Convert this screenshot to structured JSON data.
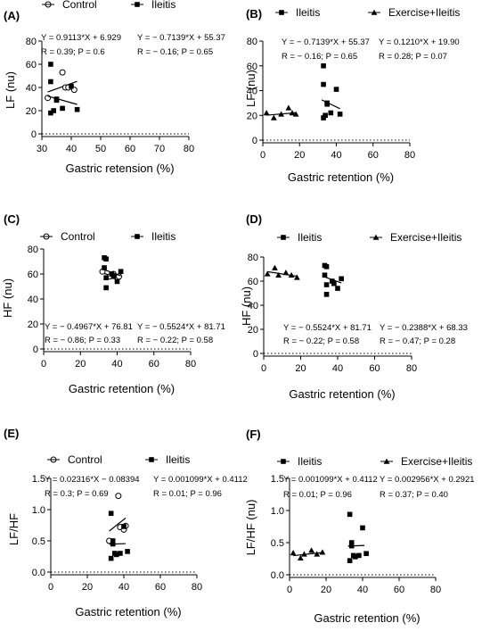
{
  "chart_data": [
    {
      "panel": "(A)",
      "type": "scatter",
      "xlabel": "Gastric retension (%)",
      "ylabel": "LF (nu)",
      "xlim": [
        30,
        80
      ],
      "ylim": [
        0,
        80
      ],
      "xticks": [
        "30",
        "40",
        "50",
        "60",
        "70",
        "80"
      ],
      "yticks": [
        "0",
        "20",
        "40",
        "60",
        "80"
      ],
      "series": [
        {
          "name": "Control",
          "marker": "open-circle",
          "equation": "Y = 0.9113*X + 6.929",
          "stats": "R = 0.39; P = 0.6",
          "line": {
            "slope": 0.9113,
            "intercept": 6.929,
            "x": [
              32,
              42
            ]
          },
          "points": [
            [
              32,
              31
            ],
            [
              37,
              53
            ],
            [
              38,
              40
            ],
            [
              39,
              40
            ],
            [
              41,
              38
            ]
          ]
        },
        {
          "name": "Ileitis",
          "marker": "filled-square",
          "equation": "Y = − 0.7139*X + 55.37",
          "stats": "R = − 0.16; P = 0.65",
          "line": {
            "slope": -0.7139,
            "intercept": 55.37,
            "x": [
              32,
              42
            ]
          },
          "points": [
            [
              33,
              60
            ],
            [
              33,
              45
            ],
            [
              33,
              18
            ],
            [
              34,
              20
            ],
            [
              35,
              29
            ],
            [
              35,
              30
            ],
            [
              37,
              22
            ],
            [
              40,
              41
            ],
            [
              42,
              21
            ]
          ]
        }
      ]
    },
    {
      "panel": "(B)",
      "type": "scatter",
      "xlabel": "Gastric retention (%)",
      "ylabel": "LF (nu)",
      "xlim": [
        0,
        80
      ],
      "ylim": [
        0,
        80
      ],
      "xticks": [
        "0",
        "20",
        "40",
        "60",
        "80"
      ],
      "yticks": [
        "0",
        "20",
        "40",
        "60",
        "80"
      ],
      "series": [
        {
          "name": "Ileitis",
          "marker": "filled-square",
          "equation": "Y = − 0.7139*X + 55.37",
          "stats": "R = − 0.16; P = 0.65",
          "line": {
            "slope": -0.7139,
            "intercept": 55.37,
            "x": [
              32,
              42
            ]
          },
          "points": [
            [
              33,
              60
            ],
            [
              33,
              45
            ],
            [
              33,
              18
            ],
            [
              34,
              20
            ],
            [
              35,
              29
            ],
            [
              35,
              30
            ],
            [
              37,
              22
            ],
            [
              40,
              41
            ],
            [
              42,
              21
            ]
          ]
        },
        {
          "name": "Exercise+Ileitis",
          "marker": "filled-triangle",
          "equation": "Y = 0.1210*X + 19.90",
          "stats": "R = 0.28; P = 0.07",
          "line": {
            "slope": 0.121,
            "intercept": 19.9,
            "x": [
              2,
              18
            ]
          },
          "points": [
            [
              2,
              22
            ],
            [
              6,
              18
            ],
            [
              10,
              21
            ],
            [
              14,
              26
            ],
            [
              16,
              22
            ],
            [
              18,
              21
            ]
          ]
        }
      ]
    },
    {
      "panel": "(C)",
      "type": "scatter",
      "xlabel": "Gastric retention (%)",
      "ylabel": "HF (nu)",
      "xlim": [
        0,
        80
      ],
      "ylim": [
        0,
        80
      ],
      "xticks": [
        "0",
        "20",
        "40",
        "60",
        "80"
      ],
      "yticks": [
        "0",
        "20",
        "40",
        "60",
        "80"
      ],
      "series": [
        {
          "name": "Control",
          "marker": "open-circle",
          "equation": "Y = − 0.4967*X + 76.81",
          "stats": "R = − 0.86; P = 0.33",
          "line": {
            "slope": -0.4967,
            "intercept": 76.81,
            "x": [
              32,
              42
            ]
          },
          "points": [
            [
              32,
              62
            ],
            [
              36,
              58
            ],
            [
              38,
              60
            ],
            [
              40,
              57
            ],
            [
              41,
              58
            ]
          ]
        },
        {
          "name": "Ileitis",
          "marker": "filled-square",
          "equation": "Y = − 0.5524*X + 81.71",
          "stats": "R = − 0.22; P = 0.58",
          "line": {
            "slope": -0.5524,
            "intercept": 81.71,
            "x": [
              32,
              42
            ]
          },
          "points": [
            [
              33,
              73
            ],
            [
              34,
              72
            ],
            [
              33,
              65
            ],
            [
              34,
              57
            ],
            [
              34,
              49
            ],
            [
              37,
              60
            ],
            [
              38,
              58
            ],
            [
              40,
              54
            ],
            [
              42,
              62
            ]
          ]
        }
      ]
    },
    {
      "panel": "(D)",
      "type": "scatter",
      "xlabel": "Gastric retention (%)",
      "ylabel": "HF (nu)",
      "xlim": [
        0,
        80
      ],
      "ylim": [
        0,
        80
      ],
      "xticks": [
        "0",
        "20",
        "40",
        "60",
        "80"
      ],
      "yticks": [
        "0",
        "20",
        "40",
        "60",
        "80"
      ],
      "series": [
        {
          "name": "Ileitis",
          "marker": "filled-square",
          "equation": "Y = − 0.5524*X + 81.71",
          "stats": "R = − 0.22; P = 0.58",
          "line": {
            "slope": -0.5524,
            "intercept": 81.71,
            "x": [
              32,
              42
            ]
          },
          "points": [
            [
              33,
              73
            ],
            [
              34,
              72
            ],
            [
              33,
              65
            ],
            [
              34,
              57
            ],
            [
              34,
              49
            ],
            [
              37,
              60
            ],
            [
              38,
              58
            ],
            [
              40,
              54
            ],
            [
              42,
              62
            ]
          ]
        },
        {
          "name": "Exercise+Ileitis",
          "marker": "filled-triangle",
          "equation": "Y = − 0.2388*X + 68.33",
          "stats": "R = − 0.47; P = 0.28",
          "line": {
            "slope": -0.2388,
            "intercept": 68.33,
            "x": [
              2,
              18
            ]
          },
          "points": [
            [
              2,
              66
            ],
            [
              6,
              71
            ],
            [
              8,
              65
            ],
            [
              12,
              67
            ],
            [
              15,
              65
            ],
            [
              18,
              63
            ]
          ]
        }
      ]
    },
    {
      "panel": "(E)",
      "type": "scatter",
      "xlabel": "Gastric retention (%)",
      "ylabel": "LF/HF",
      "xlim": [
        0,
        80
      ],
      "ylim": [
        0,
        1.5
      ],
      "xticks": [
        "0",
        "20",
        "40",
        "60",
        "80"
      ],
      "yticks": [
        "0.0",
        "0.5",
        "1.0",
        "1.5"
      ],
      "series": [
        {
          "name": "Control",
          "marker": "open-circle",
          "equation": "Y = 0.02316*X − 0.08394",
          "stats": "R = 0.3; P = 0.69",
          "line": {
            "slope": 0.02316,
            "intercept": -0.08394,
            "x": [
              32,
              41
            ]
          },
          "points": [
            [
              32,
              0.5
            ],
            [
              37,
              1.22
            ],
            [
              38,
              0.72
            ],
            [
              40,
              0.68
            ],
            [
              41,
              0.74
            ]
          ]
        },
        {
          "name": "Ileitis",
          "marker": "filled-square",
          "equation": "Y = 0.001099*X + 0.4112",
          "stats": "R = 0.01; P = 0.96",
          "line": {
            "slope": 0.001099,
            "intercept": 0.4112,
            "x": [
              32,
              41
            ]
          },
          "points": [
            [
              33,
              0.94
            ],
            [
              33,
              0.22
            ],
            [
              34,
              0.5
            ],
            [
              34,
              0.45
            ],
            [
              35,
              0.3
            ],
            [
              36,
              0.28
            ],
            [
              38,
              0.3
            ],
            [
              40,
              0.73
            ],
            [
              42,
              0.33
            ]
          ]
        }
      ]
    },
    {
      "panel": "(F)",
      "type": "scatter",
      "xlabel": "Gastric retention (%)",
      "ylabel": "LF/HF (nu)",
      "xlim": [
        0,
        80
      ],
      "ylim": [
        0,
        1.5
      ],
      "xticks": [
        "0",
        "20",
        "40",
        "60",
        "80"
      ],
      "yticks": [
        "0.0",
        "0.5",
        "1.0",
        "1.5"
      ],
      "series": [
        {
          "name": "Ileitis",
          "marker": "filled-square",
          "equation": "Y = 0.001099*X + 0.4112",
          "stats": "R = 0.01; P = 0.96",
          "line": {
            "slope": 0.001099,
            "intercept": 0.4112,
            "x": [
              32,
              41
            ]
          },
          "points": [
            [
              33,
              0.94
            ],
            [
              33,
              0.22
            ],
            [
              34,
              0.5
            ],
            [
              34,
              0.45
            ],
            [
              35,
              0.3
            ],
            [
              36,
              0.28
            ],
            [
              38,
              0.3
            ],
            [
              40,
              0.73
            ],
            [
              42,
              0.33
            ]
          ]
        },
        {
          "name": "Exercise+Ileitis",
          "marker": "filled-triangle",
          "equation": "Y = 0.002956*X + 0.2921",
          "stats": "R = 0.37; P = 0.40",
          "line": {
            "slope": 0.002956,
            "intercept": 0.2921,
            "x": [
              2,
              18
            ]
          },
          "points": [
            [
              2,
              0.34
            ],
            [
              6,
              0.26
            ],
            [
              8,
              0.32
            ],
            [
              12,
              0.38
            ],
            [
              15,
              0.32
            ],
            [
              18,
              0.35
            ]
          ]
        }
      ]
    }
  ]
}
